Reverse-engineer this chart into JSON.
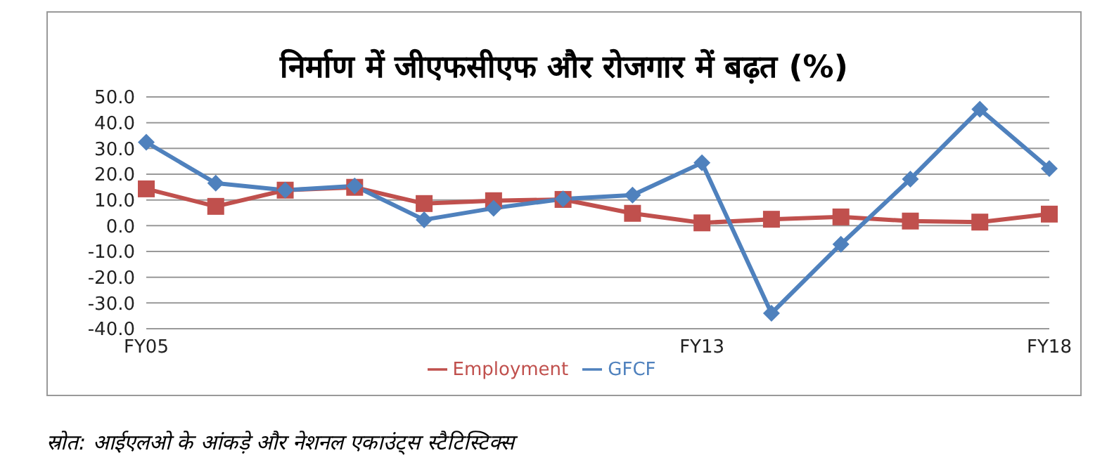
{
  "chart_data": {
    "type": "line",
    "title": "निर्माण में जीएफसीएफ और रोजगार में बढ़त (%)",
    "categories": [
      "FY05",
      null,
      null,
      null,
      null,
      null,
      null,
      null,
      "FY13",
      null,
      null,
      null,
      null,
      "FY18"
    ],
    "series": [
      {
        "name": "GFCF",
        "color": "#4f81bd",
        "marker": "diamond",
        "values": [
          32.4,
          16.5,
          13.8,
          15.4,
          2.3,
          6.8,
          10.4,
          11.9,
          24.4,
          -34,
          -7.2,
          18.1,
          45.2,
          22.2
        ]
      },
      {
        "name": "Employment",
        "color": "#c0504d",
        "marker": "square",
        "values": [
          14.3,
          7.5,
          13.8,
          14.9,
          8.6,
          9.7,
          10.2,
          4.8,
          1.1,
          2.5,
          3.4,
          1.8,
          1.4,
          4.5
        ]
      }
    ],
    "ylim": [
      -40,
      50
    ],
    "yticks": [
      {
        "value": -40,
        "label": "-40.0"
      },
      {
        "value": -30,
        "label": "-30.0"
      },
      {
        "value": -20,
        "label": "-20.0"
      },
      {
        "value": -10,
        "label": "-10.0"
      },
      {
        "value": 0,
        "label": "0.0"
      },
      {
        "value": 10,
        "label": "10.0"
      },
      {
        "value": 20,
        "label": "20.0"
      },
      {
        "value": 30,
        "label": "30.0"
      },
      {
        "value": 40,
        "label": "40.0"
      },
      {
        "value": 50,
        "label": "50.0"
      }
    ],
    "grid": "y",
    "legend": "bottom",
    "line_style": "solid",
    "annotations": [
      "स्रोत: आईएलओ के आंकड़े और नेशनल एकाउंट्स स्टैटिस्टिक्स"
    ]
  }
}
